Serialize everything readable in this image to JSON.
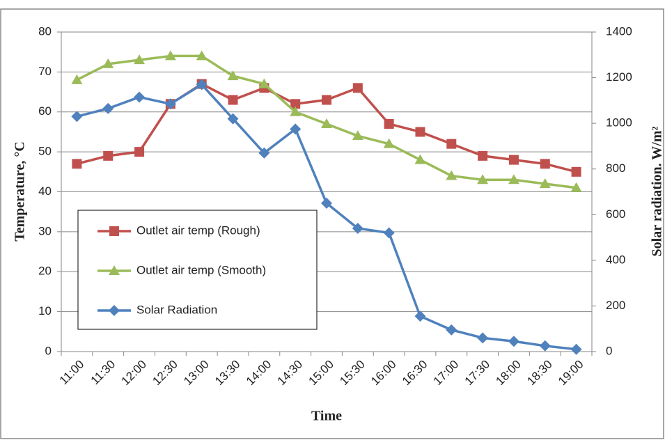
{
  "chart_data": {
    "type": "line",
    "xlabel": "Time",
    "ylabel": "Temperature, °C",
    "y2label": "Solar radiation. W/m²",
    "categories": [
      "11:00",
      "11:30",
      "12:00",
      "12:30",
      "13:00",
      "13:30",
      "14:00",
      "14:30",
      "15:00",
      "15:30",
      "16:00",
      "16:30",
      "17:00",
      "17:30",
      "18:00",
      "18:30",
      "19:00"
    ],
    "series": [
      {
        "name": "Outlet air temp (Rough)",
        "color": "#c0504d",
        "marker": "square",
        "values": [
          47,
          49,
          50,
          62,
          67,
          63,
          66,
          62,
          63,
          66,
          57,
          55,
          52,
          49,
          48,
          47,
          45
        ]
      },
      {
        "name": "Outlet air temp (Smooth)",
        "color": "#9bbb59",
        "marker": "triangle",
        "values": [
          68,
          72,
          73,
          74,
          74,
          69,
          67,
          60,
          57,
          54,
          52,
          48,
          44,
          43,
          43,
          42,
          41
        ]
      },
      {
        "name": "Solar Radiation",
        "color": "#4f81bd",
        "marker": "diamond",
        "axis": "y2",
        "values": [
          1030,
          1065,
          1115,
          1085,
          1170,
          1020,
          870,
          975,
          650,
          540,
          520,
          155,
          95,
          60,
          45,
          25,
          10
        ]
      }
    ],
    "ylim": [
      0,
      80
    ],
    "yticks": [
      0,
      10,
      20,
      30,
      40,
      50,
      60,
      70,
      80
    ],
    "y2lim": [
      0,
      1400
    ],
    "y2ticks": [
      0,
      200,
      400,
      600,
      800,
      1000,
      1200,
      1400
    ],
    "grid": true,
    "legend": "lower left"
  }
}
